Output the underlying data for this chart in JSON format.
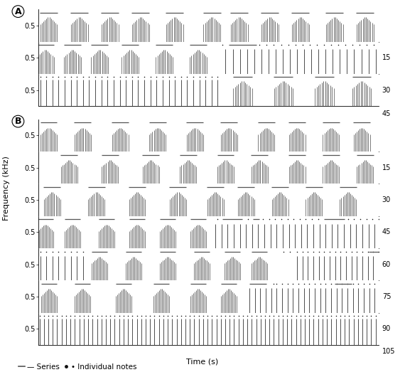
{
  "fig_width": 5.7,
  "fig_height": 5.3,
  "dpi": 100,
  "background_color": "#ffffff",
  "panel_A_label": "A",
  "panel_B_label": "B",
  "freq_label": "Frequency (kHz)",
  "time_label": "Time (s)",
  "legend_line_label": "Series",
  "legend_dot_label": "Individual notes",
  "font_size_label": 8,
  "font_size_tick": 7,
  "font_size_panel": 9,
  "font_size_legend": 7.5,
  "spectrogram_color": "#111111",
  "series_line_color": "#555555",
  "dot_color": "#111111"
}
